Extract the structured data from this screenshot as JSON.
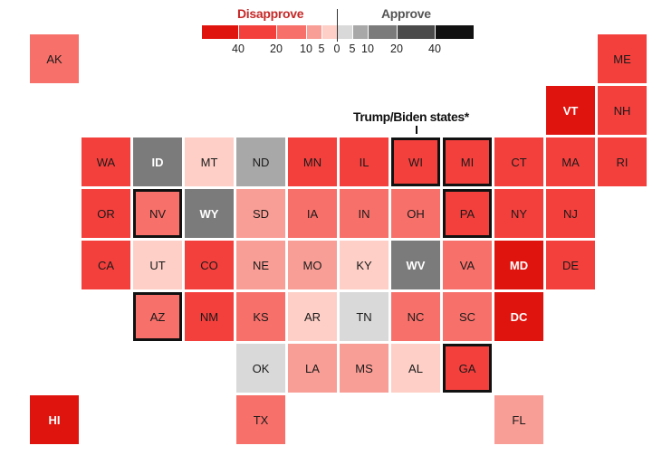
{
  "legend": {
    "disapprove_label": "Disapprove",
    "approve_label": "Approve",
    "disapprove_color": "#c62828",
    "approve_color": "#555555",
    "bins": [
      {
        "key": "d40",
        "side": "disapprove",
        "range": "40+",
        "color": "#e0140e"
      },
      {
        "key": "d20",
        "side": "disapprove",
        "range": "20-40",
        "color": "#f4403d"
      },
      {
        "key": "d10",
        "side": "disapprove",
        "range": "10-20",
        "color": "#f7706a"
      },
      {
        "key": "d5",
        "side": "disapprove",
        "range": "5-10",
        "color": "#f99e96"
      },
      {
        "key": "d0",
        "side": "disapprove",
        "range": "0-5",
        "color": "#fdcfc6"
      },
      {
        "key": "a0",
        "side": "approve",
        "range": "0-5",
        "color": "#d9d9d9"
      },
      {
        "key": "a5",
        "side": "approve",
        "range": "5-10",
        "color": "#a8a8a8"
      },
      {
        "key": "a10",
        "side": "approve",
        "range": "10-20",
        "color": "#7b7b7b"
      },
      {
        "key": "a20",
        "side": "approve",
        "range": "20-40",
        "color": "#4b4b4b"
      },
      {
        "key": "a40",
        "side": "approve",
        "range": "40+",
        "color": "#111111"
      }
    ],
    "ticks": [
      "40",
      "20",
      "10",
      "5",
      "0",
      "5",
      "10",
      "20",
      "40"
    ]
  },
  "annotation": "Trump/Biden states*",
  "states": [
    {
      "code": "AK",
      "bin": "d10"
    },
    {
      "code": "ME",
      "bin": "d20"
    },
    {
      "code": "VT",
      "bin": "d40"
    },
    {
      "code": "NH",
      "bin": "d20"
    },
    {
      "code": "WA",
      "bin": "d20"
    },
    {
      "code": "ID",
      "bin": "a10"
    },
    {
      "code": "MT",
      "bin": "d0"
    },
    {
      "code": "ND",
      "bin": "a5"
    },
    {
      "code": "MN",
      "bin": "d20"
    },
    {
      "code": "IL",
      "bin": "d20"
    },
    {
      "code": "WI",
      "bin": "d20",
      "highlighted": true
    },
    {
      "code": "MI",
      "bin": "d20",
      "highlighted": true
    },
    {
      "code": "CT",
      "bin": "d20"
    },
    {
      "code": "MA",
      "bin": "d20"
    },
    {
      "code": "RI",
      "bin": "d20"
    },
    {
      "code": "OR",
      "bin": "d20"
    },
    {
      "code": "NV",
      "bin": "d10",
      "highlighted": true
    },
    {
      "code": "WY",
      "bin": "a10"
    },
    {
      "code": "SD",
      "bin": "d5"
    },
    {
      "code": "IA",
      "bin": "d10"
    },
    {
      "code": "IN",
      "bin": "d10"
    },
    {
      "code": "OH",
      "bin": "d10"
    },
    {
      "code": "PA",
      "bin": "d20",
      "highlighted": true
    },
    {
      "code": "NY",
      "bin": "d20"
    },
    {
      "code": "NJ",
      "bin": "d20"
    },
    {
      "code": "CA",
      "bin": "d20"
    },
    {
      "code": "UT",
      "bin": "d0"
    },
    {
      "code": "CO",
      "bin": "d20"
    },
    {
      "code": "NE",
      "bin": "d5"
    },
    {
      "code": "MO",
      "bin": "d5"
    },
    {
      "code": "KY",
      "bin": "d0"
    },
    {
      "code": "WV",
      "bin": "a10"
    },
    {
      "code": "VA",
      "bin": "d10"
    },
    {
      "code": "MD",
      "bin": "d40"
    },
    {
      "code": "DE",
      "bin": "d20"
    },
    {
      "code": "AZ",
      "bin": "d10",
      "highlighted": true
    },
    {
      "code": "NM",
      "bin": "d20"
    },
    {
      "code": "KS",
      "bin": "d10"
    },
    {
      "code": "AR",
      "bin": "d0"
    },
    {
      "code": "TN",
      "bin": "a0"
    },
    {
      "code": "NC",
      "bin": "d10"
    },
    {
      "code": "SC",
      "bin": "d10"
    },
    {
      "code": "DC",
      "bin": "d40"
    },
    {
      "code": "OK",
      "bin": "a0"
    },
    {
      "code": "LA",
      "bin": "d5"
    },
    {
      "code": "MS",
      "bin": "d5"
    },
    {
      "code": "AL",
      "bin": "d0"
    },
    {
      "code": "GA",
      "bin": "d20",
      "highlighted": true
    },
    {
      "code": "HI",
      "bin": "d40"
    },
    {
      "code": "TX",
      "bin": "d10"
    },
    {
      "code": "FL",
      "bin": "d5"
    }
  ]
}
